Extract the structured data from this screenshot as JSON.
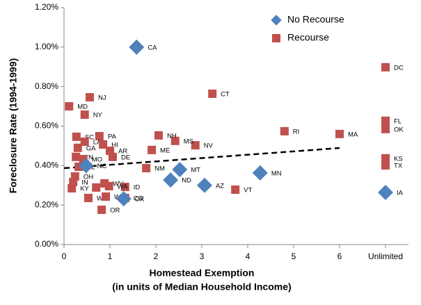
{
  "chart_data": {
    "type": "scatter",
    "ylabel": "Foreclosure Rate (1994-1999)",
    "xlabel": [
      "Homestead Exemption",
      "(in units of Median Household Income)"
    ],
    "xlim": [
      0,
      7.5
    ],
    "ylim": [
      0,
      1.2
    ],
    "xticks": [
      0,
      1,
      2,
      3,
      4,
      5,
      6,
      {
        "value": 7,
        "label": "Unlimited"
      }
    ],
    "yticks": [
      {
        "value": 0,
        "label": "0.00%"
      },
      {
        "value": 0.2,
        "label": "0.20%"
      },
      {
        "value": 0.4,
        "label": "0.40%"
      },
      {
        "value": 0.6,
        "label": "0.60%"
      },
      {
        "value": 0.8,
        "label": "0.80%"
      },
      {
        "value": 1.0,
        "label": "1.00%"
      },
      {
        "value": 1.2,
        "label": "1.20%"
      }
    ],
    "grid": false,
    "legend": "upper right",
    "series": [
      {
        "name": "No Recourse",
        "color": "#4f81bd",
        "marker": "diamond",
        "labels": [
          "CA",
          "ND",
          "MT",
          "AZ",
          "MN",
          "IA",
          "NC",
          "OK"
        ],
        "x": [
          1.58,
          2.32,
          2.52,
          3.06,
          4.27,
          7,
          0.48,
          1.3
        ],
        "values": [
          1.0,
          0.327,
          0.38,
          0.3,
          0.363,
          0.264,
          0.4,
          0.232
        ]
      },
      {
        "name": "Recourse",
        "color": "#c0504d",
        "marker": "square",
        "labels": [
          "DC",
          "FL",
          "OK",
          "KS",
          "TX",
          "MA",
          "RI",
          "CT",
          "NV",
          "MS",
          "NH",
          "ME",
          "NM",
          "VT",
          "MD",
          "NJ",
          "NY",
          "SC",
          "PA",
          "LA",
          "HI",
          "AR",
          "GA",
          "TN",
          "MO",
          "DE",
          "AL",
          "OH",
          "IN",
          "KY",
          "WV",
          "ID",
          "MI",
          "WA",
          "WY",
          "WI",
          "CO",
          "OR"
        ],
        "x": [
          7,
          7,
          7,
          7,
          7,
          6.0,
          4.8,
          3.23,
          2.86,
          2.42,
          2.06,
          1.91,
          1.79,
          3.73,
          0.11,
          0.56,
          0.45,
          0.27,
          0.77,
          0.45,
          0.85,
          1.0,
          0.3,
          0.26,
          0.42,
          1.06,
          0.32,
          0.24,
          0.2,
          0.17,
          0.88,
          1.33,
          0.7,
          0.98,
          0.53,
          0.91,
          1.33,
          0.82
        ],
        "values": [
          0.898,
          0.627,
          0.585,
          0.437,
          0.401,
          0.56,
          0.574,
          0.764,
          0.503,
          0.525,
          0.553,
          0.479,
          0.387,
          0.278,
          0.7,
          0.746,
          0.658,
          0.546,
          0.549,
          0.521,
          0.507,
          0.475,
          0.49,
          0.444,
          0.433,
          0.444,
          0.394,
          0.345,
          0.317,
          0.285,
          0.31,
          0.292,
          0.289,
          0.296,
          0.236,
          0.243,
          0.236,
          0.176
        ]
      }
    ],
    "trendline": {
      "x": [
        0,
        6
      ],
      "values": [
        0.387,
        0.489
      ]
    }
  }
}
